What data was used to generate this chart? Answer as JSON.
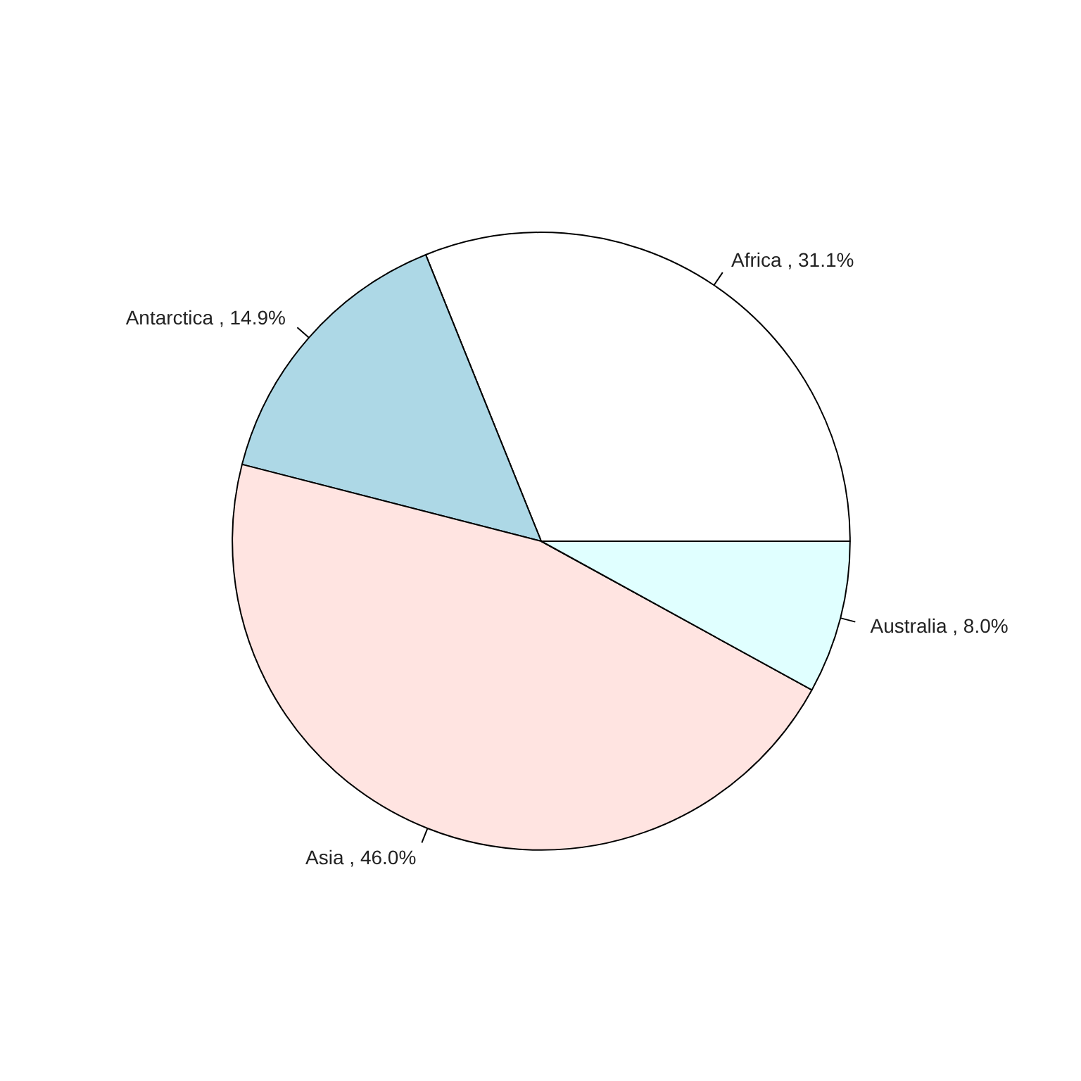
{
  "chart_data": {
    "type": "pie",
    "categories": [
      "Africa",
      "Antarctica",
      "Asia",
      "Australia"
    ],
    "values": [
      31.1,
      14.9,
      46.0,
      8.0
    ],
    "colors": [
      "#ffffff",
      "#add8e6",
      "#ffe4e1",
      "#e0ffff"
    ],
    "value_labels": [
      "31.1%",
      "14.9%",
      "46.0%",
      "8.0%"
    ]
  }
}
